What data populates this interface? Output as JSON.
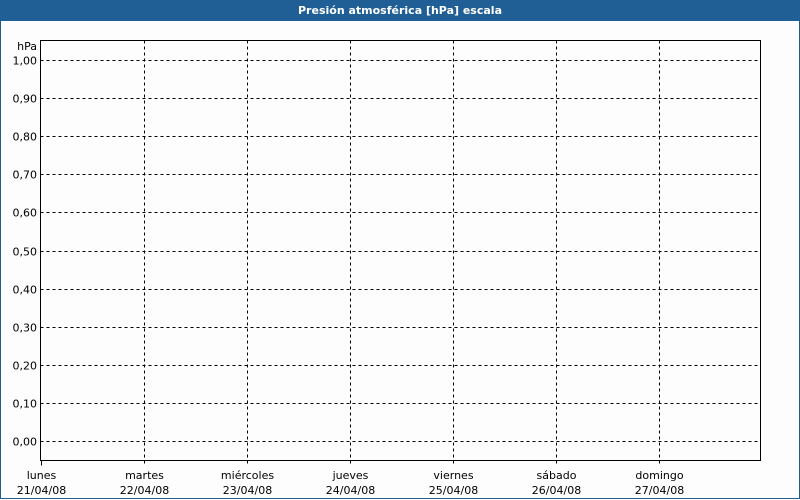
{
  "window": {
    "title": "Presión atmosférica [hPa] escala"
  },
  "chart_data": {
    "type": "line",
    "title": "Presión atmosférica [hPa] escala",
    "ylabel": "hPa",
    "xlabel": "",
    "yticks": [
      "0,00",
      "0,10",
      "0,20",
      "0,30",
      "0,40",
      "0,50",
      "0,60",
      "0,70",
      "0,80",
      "0,90",
      "1,00"
    ],
    "ylim": [
      0,
      1
    ],
    "x_categories": [
      {
        "day": "lunes",
        "date": "21/04/08"
      },
      {
        "day": "martes",
        "date": "22/04/08"
      },
      {
        "day": "miércoles",
        "date": "23/04/08"
      },
      {
        "day": "jueves",
        "date": "24/04/08"
      },
      {
        "day": "viernes",
        "date": "25/04/08"
      },
      {
        "day": "sábado",
        "date": "26/04/08"
      },
      {
        "day": "domingo",
        "date": "27/04/08"
      }
    ],
    "series": [],
    "grid": true,
    "grid_style": "dashed",
    "colors": {
      "titlebar": "#1f5f95",
      "grid": "#000000"
    }
  }
}
